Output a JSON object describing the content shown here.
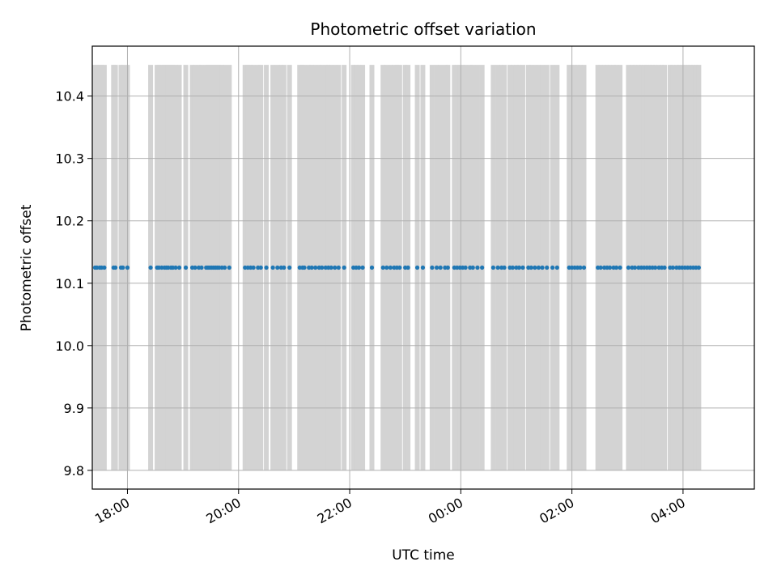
{
  "chart_data": {
    "type": "scatter",
    "title": "Photometric offset variation",
    "xlabel": "UTC time",
    "ylabel": "Photometric offset",
    "x_axis": {
      "kind": "time",
      "range": [
        "17:22",
        "05:17"
      ],
      "ticks": [
        "18:00",
        "20:00",
        "22:00",
        "00:00",
        "02:00",
        "04:00"
      ],
      "tick_values": [
        "18:00",
        "20:00",
        "22:00",
        "24:00",
        "26:00",
        "28:00"
      ]
    },
    "y_axis": {
      "range": [
        9.77,
        10.48
      ],
      "ticks": [
        "9.8",
        "9.9",
        "10.0",
        "10.1",
        "10.2",
        "10.3",
        "10.4"
      ],
      "tick_values": [
        9.8,
        9.9,
        10.0,
        10.1,
        10.2,
        10.3,
        10.4
      ]
    },
    "grid": true,
    "colors": {
      "points": "#1f77b4",
      "bands": "#d3d3d3",
      "grid": "#b0b0b0"
    },
    "bands": {
      "y_range": [
        9.8,
        10.45
      ],
      "x": [
        "17:25",
        "17:27",
        "17:30",
        "17:32",
        "17:35",
        "17:45",
        "17:47",
        "17:53",
        "17:55",
        "18:00",
        "18:25",
        "18:32",
        "18:34",
        "18:37",
        "18:40",
        "18:42",
        "18:44",
        "18:47",
        "18:49",
        "18:52",
        "18:56",
        "19:03",
        "19:10",
        "19:13",
        "19:17",
        "19:20",
        "19:25",
        "19:27",
        "19:29",
        "19:31",
        "19:33",
        "19:35",
        "19:37",
        "19:39",
        "19:42",
        "19:45",
        "19:50",
        "20:07",
        "20:10",
        "20:13",
        "20:16",
        "20:21",
        "20:24",
        "20:30",
        "20:37",
        "20:42",
        "20:46",
        "20:49",
        "20:55",
        "21:06",
        "21:09",
        "21:11",
        "21:16",
        "21:19",
        "21:23",
        "21:27",
        "21:30",
        "21:34",
        "21:37",
        "21:40",
        "21:44",
        "21:48",
        "21:54",
        "22:04",
        "22:07",
        "22:10",
        "22:14",
        "22:24",
        "22:36",
        "22:40",
        "22:44",
        "22:48",
        "22:51",
        "22:54",
        "23:00",
        "23:03",
        "23:13",
        "23:19",
        "23:29",
        "23:34",
        "23:38",
        "23:43",
        "23:46",
        "23:53",
        "23:56",
        "23:59",
        "24:02",
        "24:05",
        "24:10",
        "24:13",
        "24:18",
        "24:23",
        "24:35",
        "24:40",
        "24:44",
        "24:47",
        "24:53",
        "24:56",
        "25:00",
        "25:03",
        "25:07",
        "25:13",
        "25:16",
        "25:20",
        "25:24",
        "25:28",
        "25:33",
        "25:39",
        "25:44",
        "25:57",
        "26:00",
        "26:03",
        "26:06",
        "26:09",
        "26:13",
        "26:28",
        "26:31",
        "26:35",
        "26:38",
        "26:41",
        "26:45",
        "26:48",
        "26:52",
        "27:01",
        "27:05",
        "27:08",
        "27:12",
        "27:15",
        "27:18",
        "27:21",
        "27:24",
        "27:27",
        "27:30",
        "27:34",
        "27:37",
        "27:40",
        "27:46",
        "27:49",
        "27:53",
        "27:56",
        "27:59",
        "28:02",
        "28:05",
        "28:08",
        "28:11",
        "28:14",
        "28:17"
      ]
    },
    "series": [
      {
        "x": [
          "17:25",
          "17:27",
          "17:30",
          "17:32",
          "17:35",
          "17:45",
          "17:47",
          "17:53",
          "17:55",
          "18:00",
          "18:25",
          "18:32",
          "18:34",
          "18:37",
          "18:40",
          "18:42",
          "18:44",
          "18:47",
          "18:49",
          "18:52",
          "18:56",
          "19:03",
          "19:10",
          "19:13",
          "19:17",
          "19:20",
          "19:25",
          "19:27",
          "19:29",
          "19:31",
          "19:33",
          "19:35",
          "19:37",
          "19:39",
          "19:42",
          "19:45",
          "19:50",
          "20:07",
          "20:10",
          "20:13",
          "20:16",
          "20:21",
          "20:24",
          "20:30",
          "20:37",
          "20:42",
          "20:46",
          "20:49",
          "20:55",
          "21:06",
          "21:09",
          "21:11",
          "21:16",
          "21:19",
          "21:23",
          "21:27",
          "21:30",
          "21:34",
          "21:37",
          "21:40",
          "21:44",
          "21:48",
          "21:54",
          "22:04",
          "22:07",
          "22:10",
          "22:14",
          "22:24",
          "22:36",
          "22:40",
          "22:44",
          "22:48",
          "22:51",
          "22:54",
          "23:00",
          "23:03",
          "23:13",
          "23:19",
          "23:29",
          "23:34",
          "23:38",
          "23:43",
          "23:46",
          "23:53",
          "23:56",
          "23:59",
          "24:02",
          "24:05",
          "24:10",
          "24:13",
          "24:18",
          "24:23",
          "24:35",
          "24:40",
          "24:44",
          "24:47",
          "24:53",
          "24:56",
          "25:00",
          "25:03",
          "25:07",
          "25:13",
          "25:16",
          "25:20",
          "25:24",
          "25:28",
          "25:33",
          "25:39",
          "25:44",
          "25:57",
          "26:00",
          "26:03",
          "26:06",
          "26:09",
          "26:13",
          "26:28",
          "26:31",
          "26:35",
          "26:38",
          "26:41",
          "26:45",
          "26:48",
          "26:52",
          "27:01",
          "27:05",
          "27:08",
          "27:12",
          "27:15",
          "27:18",
          "27:21",
          "27:24",
          "27:27",
          "27:30",
          "27:34",
          "27:37",
          "27:40",
          "27:46",
          "27:49",
          "27:53",
          "27:56",
          "27:59",
          "28:02",
          "28:05",
          "28:08",
          "28:11",
          "28:14",
          "28:17"
        ],
        "y": 10.125
      }
    ]
  }
}
